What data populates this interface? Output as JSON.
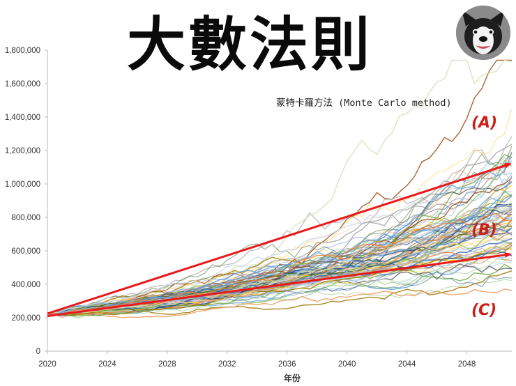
{
  "title": "大數法則",
  "colors": {
    "arrow": "#e8191b",
    "annotation": "#cc1f1a",
    "axis": "#b8b8b8",
    "text": "#333333"
  },
  "avatar": {
    "icon": "bulldog-icon"
  },
  "chart_data": {
    "type": "line",
    "subtitle": "蒙特卡羅方法 (Monte Carlo method)",
    "xlabel": "年份",
    "ylabel": "",
    "x_ticks": [
      "2020",
      "2024",
      "2028",
      "2032",
      "2036",
      "2040",
      "2044",
      "2048"
    ],
    "y_ticks": [
      "0",
      "200,000",
      "400,000",
      "600,000",
      "800,000",
      "1,000,000",
      "1,200,000",
      "1,400,000",
      "1,600,000",
      "1,800,000"
    ],
    "xlim": [
      2020,
      2051
    ],
    "ylim": [
      0,
      1800000
    ],
    "grid": false,
    "simulation": {
      "paths": 90,
      "start_value": 220000,
      "start_year": 2020,
      "end_year": 2051,
      "approx_median_end_value": 780000,
      "approx_max_end_value": 1740000,
      "approx_min_end_value": 420000
    },
    "trend_arrows": [
      {
        "from": [
          2020,
          225000
        ],
        "to": [
          2051,
          1120000
        ]
      },
      {
        "from": [
          2020,
          210000
        ],
        "to": [
          2051,
          580000
        ]
      }
    ],
    "annotations": [
      {
        "label": "(A)",
        "x": 2048.3,
        "y": 1370000
      },
      {
        "label": "(B)",
        "x": 2048.3,
        "y": 730000
      },
      {
        "label": "(C)",
        "x": 2048.3,
        "y": 250000
      }
    ]
  }
}
